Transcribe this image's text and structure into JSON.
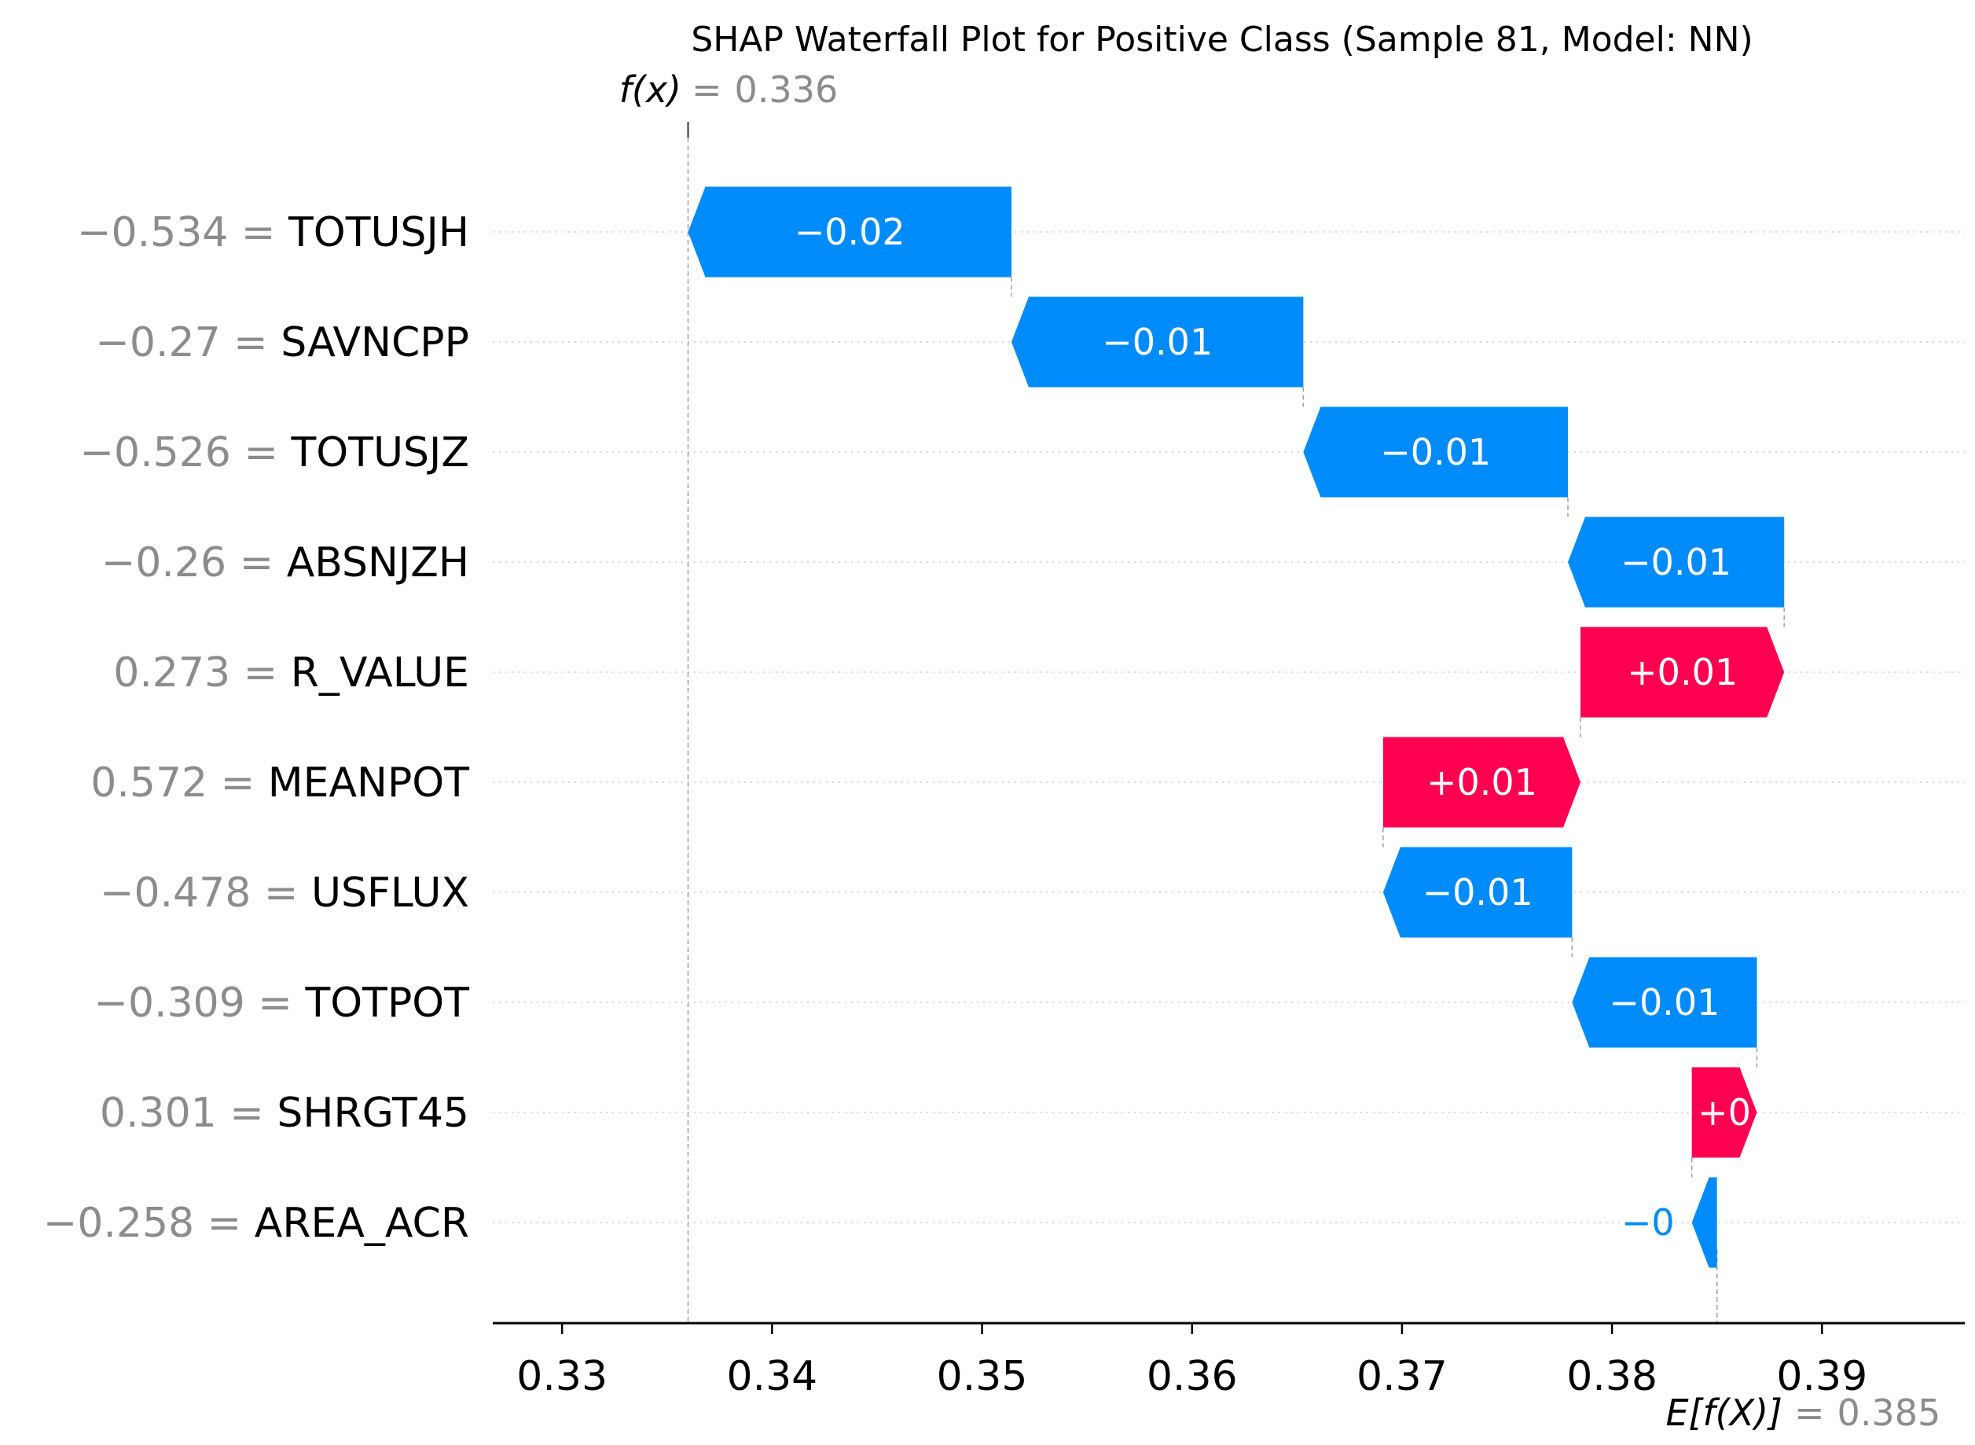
{
  "chart_data": {
    "type": "waterfall",
    "title": "SHAP Waterfall Plot for Positive Class (Sample 81, Model: NN)",
    "fx": {
      "label": "f(x)",
      "equals": "=",
      "value": "0.336",
      "x": 0.336
    },
    "expected": {
      "label": "E[f(X)]",
      "equals": "=",
      "value": "0.385",
      "x": 0.385
    },
    "xlim": [
      0.3267,
      0.3968
    ],
    "xticks": [
      0.33,
      0.34,
      0.35,
      0.36,
      0.37,
      0.38,
      0.39
    ],
    "xtick_labels": [
      "0.33",
      "0.34",
      "0.35",
      "0.36",
      "0.37",
      "0.38",
      "0.39"
    ],
    "features": [
      {
        "value": "−0.534",
        "name": "TOTUSJH",
        "start": 0.3514,
        "end": 0.336,
        "label": "−0.02"
      },
      {
        "value": "−0.27",
        "name": "SAVNCPP",
        "start": 0.3653,
        "end": 0.3514,
        "label": "−0.01"
      },
      {
        "value": "−0.526",
        "name": "TOTUSJZ",
        "start": 0.3779,
        "end": 0.3653,
        "label": "−0.01"
      },
      {
        "value": "−0.26",
        "name": "ABSNJZH",
        "start": 0.3882,
        "end": 0.3779,
        "label": "−0.01"
      },
      {
        "value": "0.273",
        "name": "R_VALUE",
        "start": 0.3785,
        "end": 0.3882,
        "label": "+0.01"
      },
      {
        "value": "0.572",
        "name": "MEANPOT",
        "start": 0.3691,
        "end": 0.3785,
        "label": "+0.01"
      },
      {
        "value": "−0.478",
        "name": "USFLUX",
        "start": 0.3781,
        "end": 0.3691,
        "label": "−0.01"
      },
      {
        "value": "−0.309",
        "name": "TOTPOT",
        "start": 0.3869,
        "end": 0.3781,
        "label": "−0.01"
      },
      {
        "value": "0.301",
        "name": "SHRGT45",
        "start": 0.3838,
        "end": 0.3869,
        "label": "+0"
      },
      {
        "value": "−0.258",
        "name": "AREA_ACR",
        "start": 0.385,
        "end": 0.3838,
        "label": "−0"
      }
    ],
    "colors": {
      "positive": "#ff0051",
      "negative": "#008bfb",
      "axis": "#000000",
      "gridline": "#cccccc",
      "connector": "#a0a0a0",
      "muted": "#8c8c8c"
    }
  }
}
